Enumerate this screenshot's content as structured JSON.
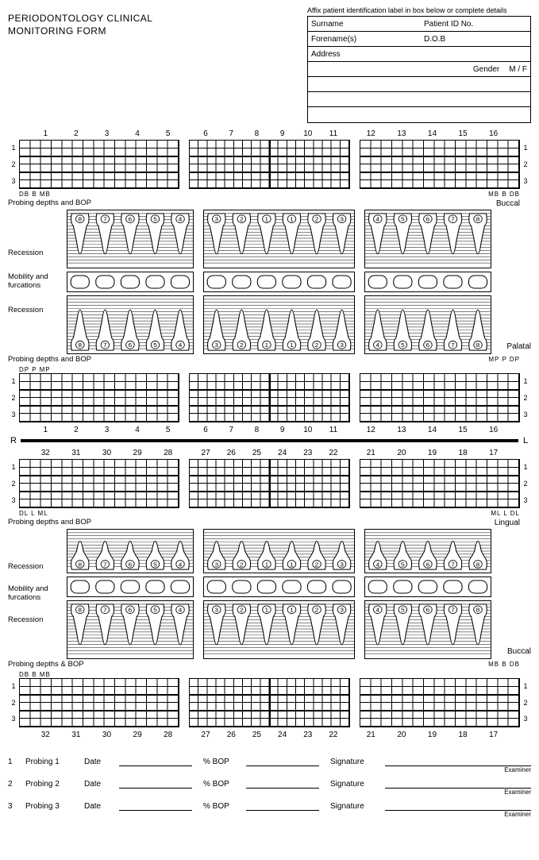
{
  "title_line1": "PERIODONTOLOGY CLINICAL",
  "title_line2": "MONITORING FORM",
  "affix_text": "Affix patient identification label in box below or complete details",
  "patient_fields": {
    "surname": "Surname",
    "patient_id": "Patient ID No.",
    "forename": "Forename(s)",
    "dob": "D.O.B",
    "address": "Address",
    "gender": "Gender",
    "gender_opts": "M   /   F"
  },
  "tooth_rows": {
    "upper_top": [
      "1",
      "2",
      "3",
      "4",
      "5",
      "6",
      "7",
      "8",
      "9",
      "10",
      "11",
      "12",
      "13",
      "14",
      "15",
      "16"
    ],
    "upper_bottom": [
      "1",
      "2",
      "3",
      "4",
      "5",
      "6",
      "7",
      "8",
      "9",
      "10",
      "11",
      "12",
      "13",
      "14",
      "15",
      "16"
    ],
    "lower_top": [
      "32",
      "31",
      "30",
      "29",
      "28",
      "27",
      "26",
      "25",
      "24",
      "23",
      "22",
      "21",
      "20",
      "19",
      "18",
      "17"
    ],
    "lower_bottom": [
      "32",
      "31",
      "30",
      "29",
      "28",
      "27",
      "26",
      "25",
      "24",
      "23",
      "22",
      "21",
      "20",
      "19",
      "18",
      "17"
    ]
  },
  "grid_side_nums": [
    "1",
    "2",
    "3"
  ],
  "sublabels": {
    "buccal_left": "DB   B   MB",
    "buccal_right": "MB   B   DB",
    "palatal_left": "DP   P   MP",
    "palatal_right": "MP   P   DP",
    "lingual_left": "DL    L   ML",
    "lingual_right": "ML    L   DL",
    "buccal_lower_left": "DB   B  MB",
    "buccal_lower_right": "MB   B   DB"
  },
  "aspects": {
    "buccal": "Buccal",
    "palatal": "Palatal",
    "lingual": "Lingual"
  },
  "row_labels": {
    "probing_bop": "Probing depths and BOP",
    "probing_bop_amp": "Probing depths & BOP",
    "recession": "Recession",
    "mobility_furcations": "Mobility and furcations",
    "mobility_and_furc": "Mobility and furcations"
  },
  "rl_letters": {
    "r": "R",
    "l": "L"
  },
  "tooth_inner_labels": {
    "left": [
      "8",
      "7",
      "6",
      "5",
      "4"
    ],
    "mid": [
      "3",
      "2",
      "1",
      "1",
      "2",
      "3"
    ],
    "right": [
      "4",
      "5",
      "6",
      "7",
      "8"
    ]
  },
  "footer": {
    "rows": [
      {
        "n": "1",
        "label": "Probing 1"
      },
      {
        "n": "2",
        "label": "Probing 2"
      },
      {
        "n": "3",
        "label": "Probing 3"
      }
    ],
    "date": "Date",
    "pct_bop": "% BOP",
    "signature": "Signature",
    "examiner": "Examiner"
  },
  "colors": {
    "ink": "#000000",
    "paper": "#ffffff"
  },
  "layout": {
    "groups": [
      5,
      6,
      5
    ],
    "grid_rows": 6,
    "grid_major_every": 2
  }
}
